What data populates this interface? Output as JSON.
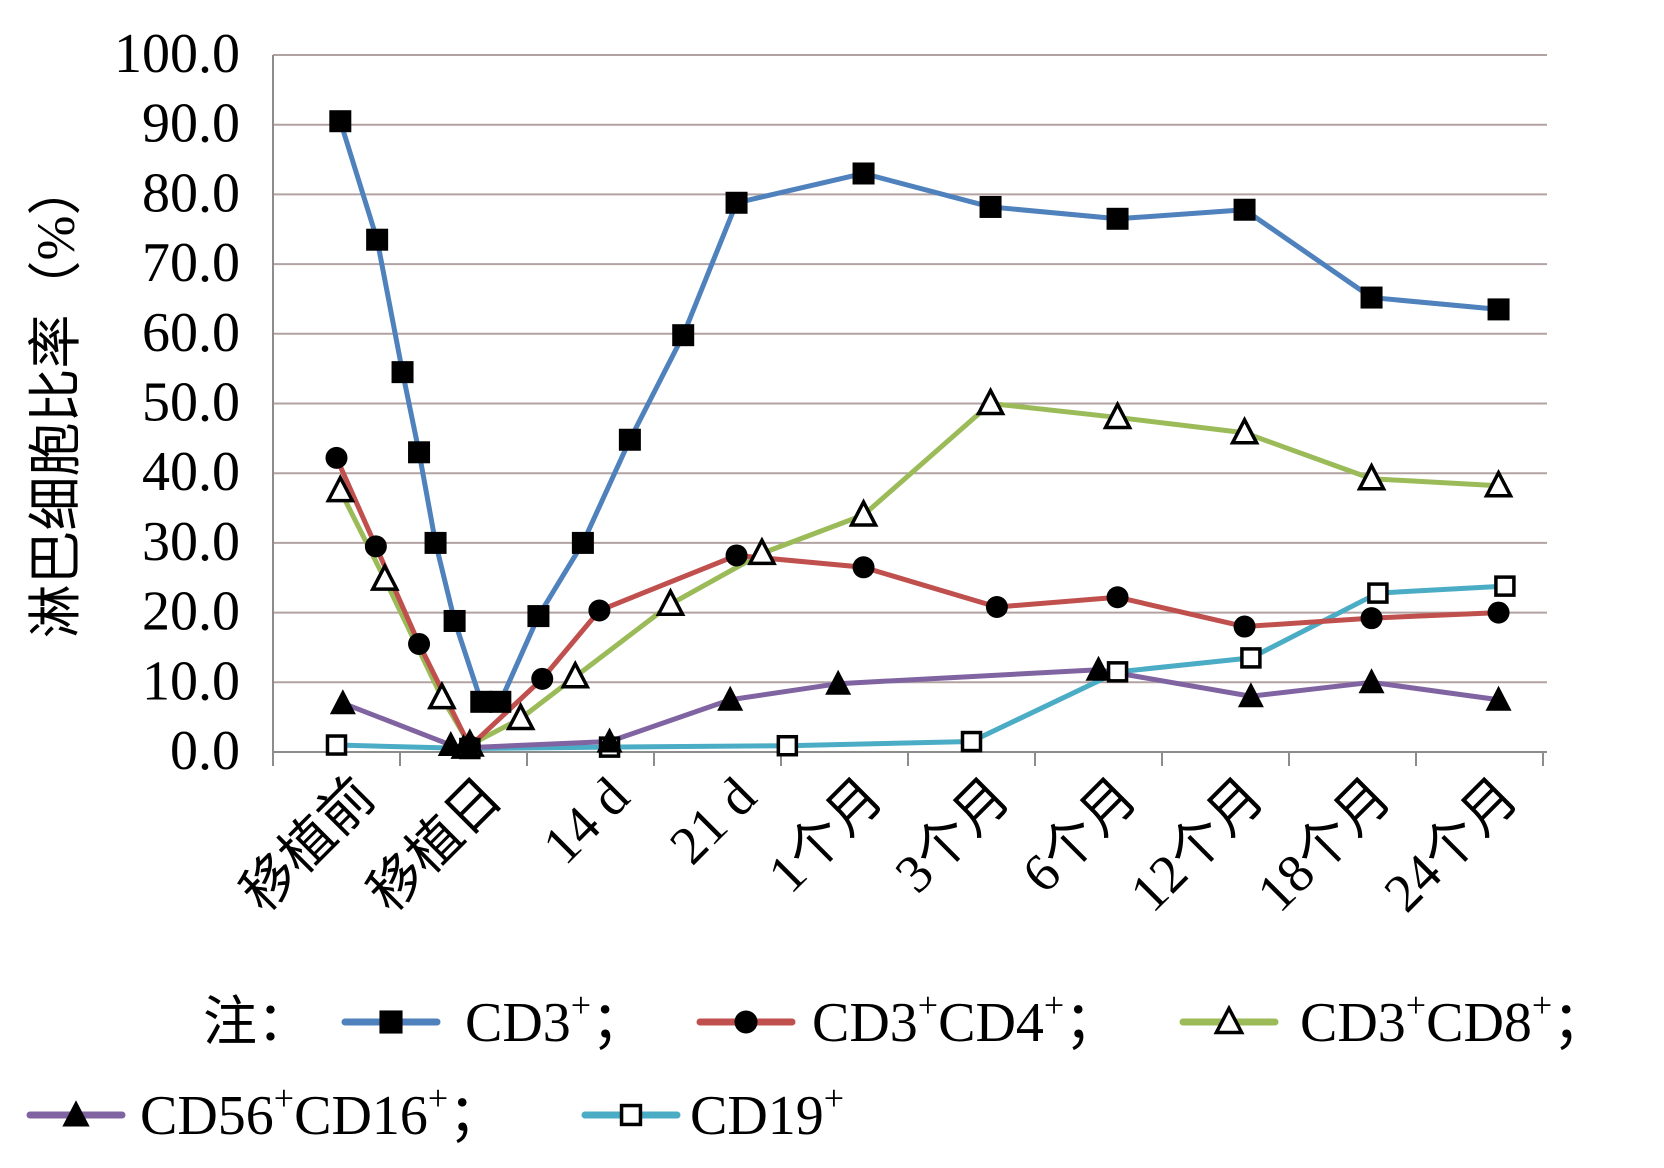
{
  "chart_data": {
    "type": "line",
    "title": "",
    "ylabel": "淋巴细胞比率（%）",
    "xlabel": "",
    "ylim": [
      0,
      100
    ],
    "yticks": [
      "0.0",
      "10.0",
      "20.0",
      "30.0",
      "40.0",
      "50.0",
      "60.0",
      "70.0",
      "80.0",
      "90.0",
      "100.0"
    ],
    "categories": [
      "移植前",
      "移植日",
      "14 d",
      "21 d",
      "1个月",
      "3个月",
      "6个月",
      "12个月",
      "18个月",
      "24个月"
    ],
    "grid": true,
    "legend_position": "bottom",
    "legend_prefix": "注：",
    "series": [
      {
        "name": "CD3+",
        "legend_base": [
          "CD3"
        ],
        "legend_sup": [
          "+"
        ],
        "legend_suffix": "；",
        "color": "#4f81bd",
        "marker": "square-filled",
        "x": [
          0.03,
          0.32,
          0.52,
          0.65,
          0.78,
          0.93,
          1.14,
          1.29,
          1.59,
          1.94,
          2.31,
          2.73,
          3.15,
          4.15,
          5.15,
          6.15,
          7.15,
          8.15,
          9.15
        ],
        "y": [
          90.5,
          73.5,
          54.5,
          43.0,
          30.0,
          18.8,
          7.2,
          7.2,
          19.5,
          30.0,
          44.8,
          59.8,
          78.8,
          83.0,
          78.2,
          76.5,
          77.8,
          65.2,
          63.5
        ]
      },
      {
        "name": "CD3+CD4+",
        "legend_base": [
          "CD3",
          "CD4"
        ],
        "legend_sup": [
          "+",
          "+"
        ],
        "legend_suffix": "；",
        "color": "#c0504d",
        "marker": "circle-filled",
        "x": [
          0.0,
          0.31,
          0.65,
          1.05,
          1.62,
          2.07,
          3.15,
          4.15,
          5.2,
          6.15,
          7.15,
          8.15,
          9.15
        ],
        "y": [
          42.2,
          29.5,
          15.5,
          0.8,
          10.5,
          20.3,
          28.2,
          26.5,
          20.8,
          22.2,
          18.0,
          19.2,
          20.0
        ]
      },
      {
        "name": "CD3+CD8+",
        "legend_base": [
          "CD3",
          "CD8"
        ],
        "legend_sup": [
          "+",
          "+"
        ],
        "legend_suffix": "；",
        "color": "#9bbb59",
        "marker": "triangle-open",
        "x": [
          0.03,
          0.38,
          0.83,
          1.05,
          1.45,
          1.88,
          2.63,
          3.35,
          4.15,
          5.15,
          6.15,
          7.15,
          8.15,
          9.15
        ],
        "y": [
          37.5,
          24.8,
          7.8,
          1.0,
          4.8,
          10.8,
          21.2,
          28.5,
          34.0,
          50.0,
          48.0,
          45.8,
          39.2,
          38.2
        ]
      },
      {
        "name": "CD56+CD16+",
        "legend_base": [
          "CD56",
          "CD16"
        ],
        "legend_sup": [
          "+",
          "+"
        ],
        "legend_suffix": "；",
        "color": "#8064a2",
        "marker": "triangle-filled",
        "x": [
          0.05,
          0.9,
          1.0,
          2.15,
          3.1,
          3.95,
          6.0,
          7.2,
          8.15,
          9.15
        ],
        "y": [
          7.0,
          1.0,
          0.6,
          1.5,
          7.5,
          9.8,
          11.8,
          8.0,
          10.0,
          7.5
        ]
      },
      {
        "name": "CD19+",
        "legend_base": [
          "CD19"
        ],
        "legend_sup": [
          "+"
        ],
        "legend_suffix": "",
        "color": "#4bacc6",
        "marker": "square-open",
        "x": [
          0.0,
          1.05,
          2.15,
          3.55,
          5.0,
          6.15,
          7.2,
          8.2,
          9.2
        ],
        "y": [
          1.0,
          0.5,
          0.7,
          0.9,
          1.5,
          11.5,
          13.5,
          22.8,
          23.8
        ]
      }
    ]
  }
}
